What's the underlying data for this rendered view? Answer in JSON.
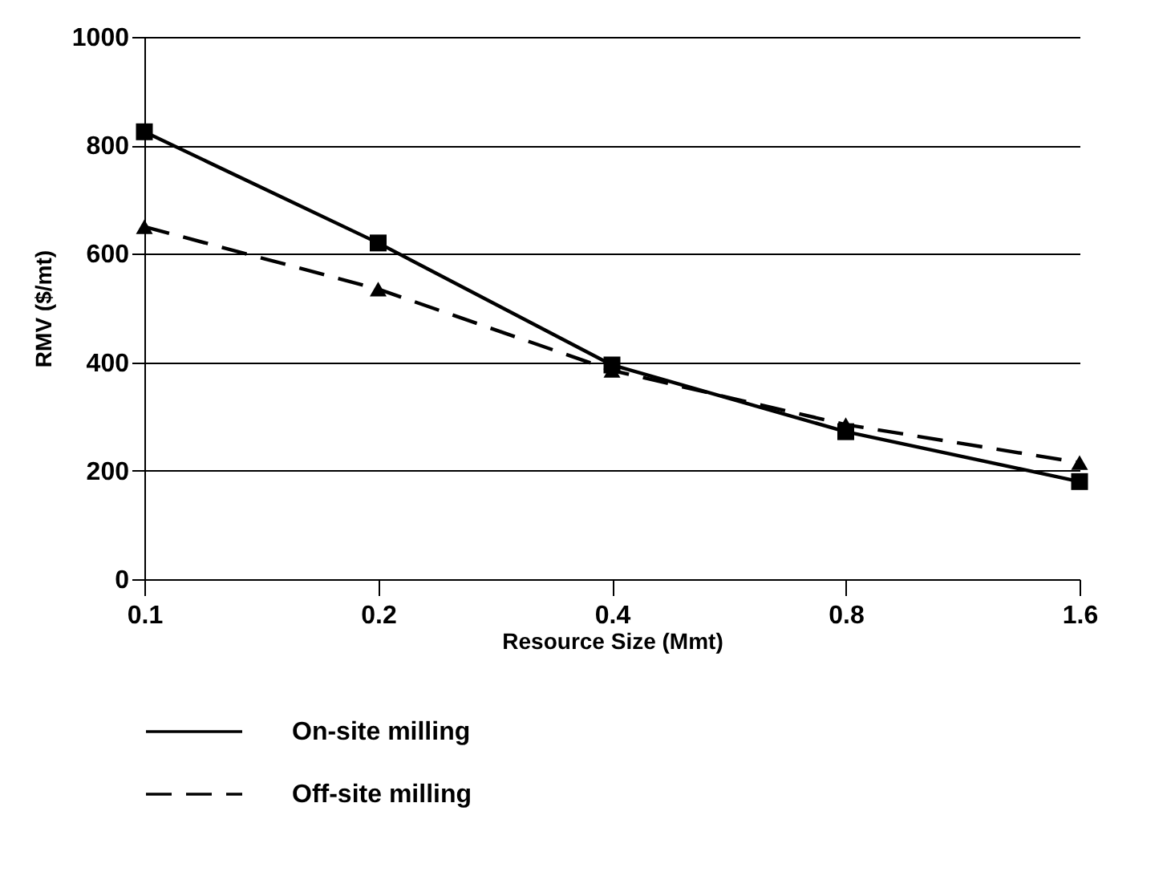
{
  "chart_data": {
    "type": "line",
    "xlabel": "Resource Size (Mmt)",
    "ylabel": "RMV ($/mt)",
    "categories": [
      "0.1",
      "0.2",
      "0.4",
      "0.8",
      "1.6"
    ],
    "series": [
      {
        "name": "On-site milling",
        "color": "#000000",
        "marker": "square",
        "line_style": "solid",
        "values": [
          825,
          620,
          395,
          272,
          180
        ]
      },
      {
        "name": "Off-site milling",
        "color": "#000000",
        "marker": "triangle",
        "line_style": "dashed",
        "values": [
          650,
          535,
          385,
          285,
          215
        ]
      }
    ],
    "ylim": [
      0,
      1000
    ],
    "yticks": [
      0,
      200,
      400,
      600,
      800,
      1000
    ],
    "grid": "y",
    "legend": "bottom"
  }
}
